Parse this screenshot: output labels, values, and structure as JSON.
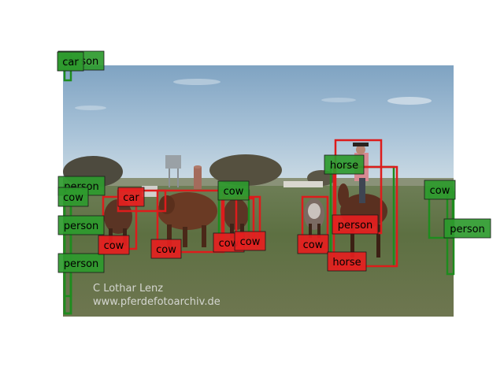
{
  "image": {
    "watermark_line1": "C   Lothar Lenz",
    "watermark_line2": "www.pferdefotoarchiv.de"
  },
  "colors": {
    "prediction": "#dd1c1c",
    "ground_truth": "#1e8c1e",
    "label_pred_bg": "#e52020",
    "label_gt_bg": "#2e9a2e"
  },
  "detections": [
    {
      "kind": "gt",
      "label": "person"
    },
    {
      "kind": "gt",
      "label": "car"
    },
    {
      "kind": "gt",
      "label": "person"
    },
    {
      "kind": "gt",
      "label": "cow"
    },
    {
      "kind": "gt",
      "label": "person"
    },
    {
      "kind": "gt",
      "label": "person"
    },
    {
      "kind": "pred",
      "label": "car"
    },
    {
      "kind": "pred",
      "label": "cow"
    },
    {
      "kind": "pred",
      "label": "cow"
    },
    {
      "kind": "gt",
      "label": "cow"
    },
    {
      "kind": "pred",
      "label": "cow"
    },
    {
      "kind": "pred",
      "label": "cow"
    },
    {
      "kind": "pred",
      "label": "cow"
    },
    {
      "kind": "gt",
      "label": "horse"
    },
    {
      "kind": "pred",
      "label": "person"
    },
    {
      "kind": "pred",
      "label": "horse"
    },
    {
      "kind": "gt",
      "label": "cow"
    },
    {
      "kind": "gt",
      "label": "person"
    }
  ]
}
